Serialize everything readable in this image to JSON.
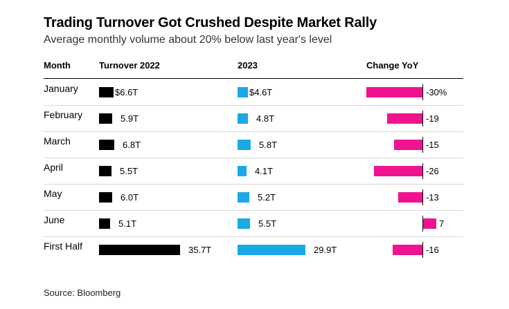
{
  "title": "Trading Turnover Got Crushed Despite Market Rally",
  "subtitle": "Average monthly volume about 20% below last year's level",
  "source": "Source: Bloomberg",
  "headers": {
    "month": "Month",
    "t2022": "Turnover 2022",
    "t2023": "2023",
    "change": "Change YoY"
  },
  "colors": {
    "y2022": "#000000",
    "y2023": "#1aa9e6",
    "change": "#f0138f"
  },
  "chart_data": {
    "type": "table",
    "columns": [
      "Month",
      "Turnover 2022",
      "2023",
      "Change YoY"
    ],
    "rows": [
      {
        "month": "January",
        "v2022": 6.6,
        "v2023": 4.6,
        "change": -30,
        "label2022": "$6.6T",
        "label2023": "$4.6T",
        "labelChange": "-30%"
      },
      {
        "month": "February",
        "v2022": 5.9,
        "v2023": 4.8,
        "change": -19,
        "label2022": "5.9T",
        "label2023": "4.8T",
        "labelChange": "-19"
      },
      {
        "month": "March",
        "v2022": 6.8,
        "v2023": 5.8,
        "change": -15,
        "label2022": "6.8T",
        "label2023": "5.8T",
        "labelChange": "-15"
      },
      {
        "month": "April",
        "v2022": 5.5,
        "v2023": 4.1,
        "change": -26,
        "label2022": "5.5T",
        "label2023": "4.1T",
        "labelChange": "-26"
      },
      {
        "month": "May",
        "v2022": 6.0,
        "v2023": 5.2,
        "change": -13,
        "label2022": "6.0T",
        "label2023": "5.2T",
        "labelChange": "-13"
      },
      {
        "month": "June",
        "v2022": 5.1,
        "v2023": 5.5,
        "change": 7,
        "label2022": "5.1T",
        "label2023": "5.5T",
        "labelChange": "7"
      },
      {
        "month": "First Half",
        "v2022": 35.7,
        "v2023": 29.9,
        "change": -16,
        "label2022": "35.7T",
        "label2023": "29.9T",
        "labelChange": "-16"
      }
    ]
  }
}
